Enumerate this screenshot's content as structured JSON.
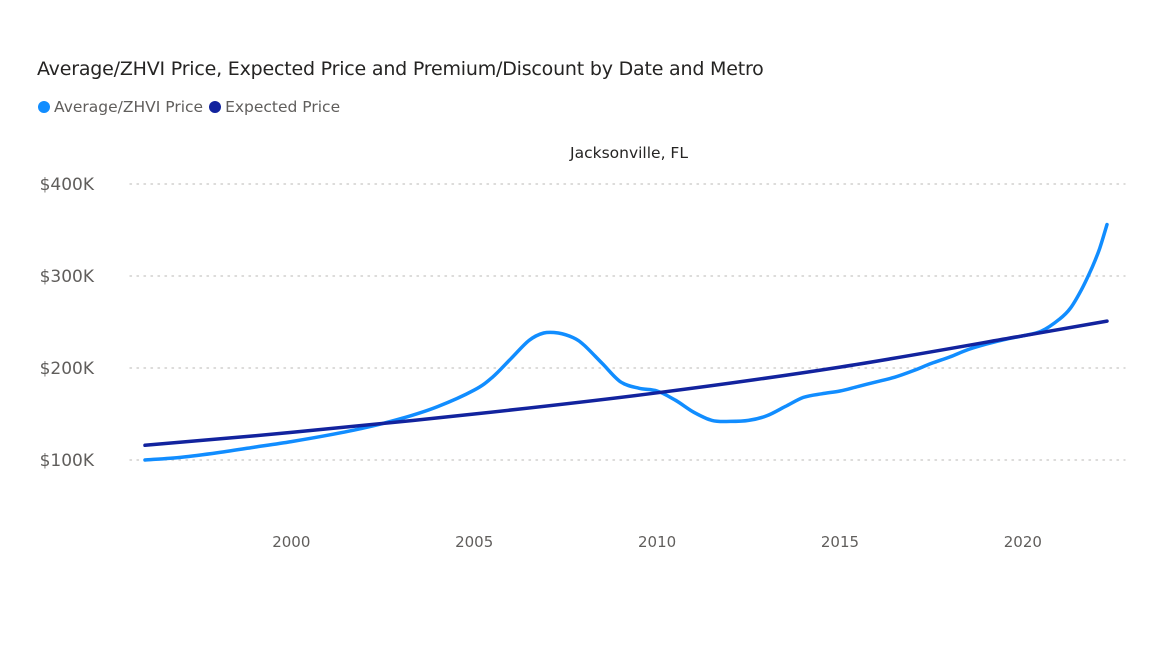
{
  "chart_data": {
    "type": "line",
    "title": "Average/ZHVI Price, Expected Price and Premium/Discount by Date and Metro",
    "panel_title": "Jacksonville, FL",
    "legend_position": "top-left",
    "grid": "horizontal dotted",
    "xlabel": "",
    "ylabel": "",
    "x_ticks": [
      "2000",
      "2005",
      "2010",
      "2015",
      "2020"
    ],
    "x_tick_values": [
      2000,
      2005,
      2010,
      2015,
      2020
    ],
    "y_ticks": [
      "$100K",
      "$200K",
      "$300K",
      "$400K"
    ],
    "y_tick_values": [
      100000,
      200000,
      300000,
      400000
    ],
    "xlim": [
      1996,
      2022.3
    ],
    "ylim": [
      100000,
      400000
    ],
    "series": [
      {
        "name": "Average/ZHVI Price",
        "color": "#118DFF",
        "x": [
          1996.0,
          1997.0,
          1998.0,
          1999.0,
          2000.0,
          2001.0,
          2002.0,
          2003.0,
          2004.0,
          2005.0,
          2005.5,
          2006.0,
          2006.5,
          2006.9,
          2007.3,
          2007.7,
          2008.0,
          2008.5,
          2009.0,
          2009.5,
          2010.0,
          2010.5,
          2011.0,
          2011.5,
          2012.0,
          2012.5,
          2013.0,
          2013.5,
          2014.0,
          2014.5,
          2015.0,
          2015.5,
          2016.0,
          2016.5,
          2017.0,
          2017.5,
          2018.0,
          2018.5,
          2019.0,
          2019.5,
          2020.0,
          2020.5,
          2021.0,
          2021.3,
          2021.6,
          2021.9,
          2022.1,
          2022.3
        ],
        "values": [
          100000,
          103000,
          108000,
          114000,
          120000,
          127000,
          135000,
          145000,
          158000,
          176000,
          190000,
          210000,
          230000,
          238000,
          238000,
          233000,
          225000,
          205000,
          185000,
          178000,
          175000,
          165000,
          152000,
          143000,
          142000,
          143000,
          148000,
          158000,
          168000,
          172000,
          175000,
          180000,
          185000,
          190000,
          197000,
          205000,
          212000,
          220000,
          226000,
          231000,
          235000,
          240000,
          253000,
          265000,
          285000,
          310000,
          330000,
          356000
        ]
      },
      {
        "name": "Expected Price",
        "color": "#12239E",
        "x": [
          1996.0,
          2000.0,
          2005.0,
          2010.0,
          2015.0,
          2020.0,
          2022.3
        ],
        "values": [
          116000,
          130000,
          150000,
          173000,
          201000,
          235000,
          251000
        ]
      }
    ]
  }
}
